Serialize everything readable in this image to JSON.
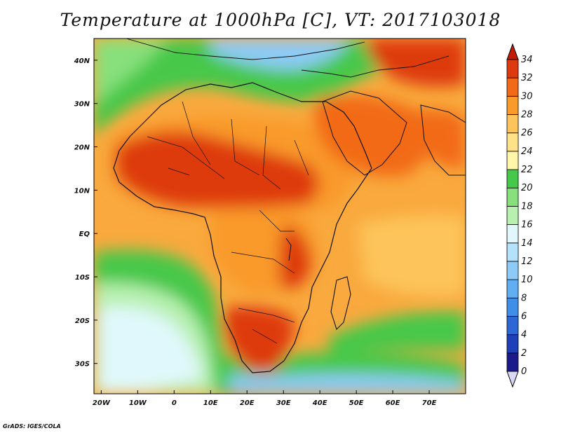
{
  "title": "Temperature at 1000hPa [C], VT: 2017103018",
  "credit": "GrADS: IGES/COLA",
  "map": {
    "variable": "Temperature at 1000hPa",
    "unit": "C",
    "valid_time": "2017103018",
    "lon_range": [
      -22,
      80
    ],
    "lat_range": [
      -37,
      45
    ],
    "lon_ticks": [
      {
        "value": -20,
        "label": "20W"
      },
      {
        "value": -10,
        "label": "10W"
      },
      {
        "value": 0,
        "label": "0"
      },
      {
        "value": 10,
        "label": "10E"
      },
      {
        "value": 20,
        "label": "20E"
      },
      {
        "value": 30,
        "label": "30E"
      },
      {
        "value": 40,
        "label": "40E"
      },
      {
        "value": 50,
        "label": "50E"
      },
      {
        "value": 60,
        "label": "60E"
      },
      {
        "value": 70,
        "label": "70E"
      }
    ],
    "lat_ticks": [
      {
        "value": 40,
        "label": "40N"
      },
      {
        "value": 30,
        "label": "30N"
      },
      {
        "value": 20,
        "label": "20N"
      },
      {
        "value": 10,
        "label": "10N"
      },
      {
        "value": 0,
        "label": "EQ"
      },
      {
        "value": -10,
        "label": "10S"
      },
      {
        "value": -20,
        "label": "20S"
      },
      {
        "value": -30,
        "label": "30S"
      }
    ]
  },
  "colorbar": {
    "levels": [
      {
        "value": 0,
        "label": "0"
      },
      {
        "value": 2,
        "label": "2"
      },
      {
        "value": 4,
        "label": "4"
      },
      {
        "value": 6,
        "label": "6"
      },
      {
        "value": 8,
        "label": "8"
      },
      {
        "value": 10,
        "label": "10"
      },
      {
        "value": 12,
        "label": "12"
      },
      {
        "value": 14,
        "label": "14"
      },
      {
        "value": 16,
        "label": "16"
      },
      {
        "value": 18,
        "label": "18"
      },
      {
        "value": 20,
        "label": "20"
      },
      {
        "value": 22,
        "label": "22"
      },
      {
        "value": 24,
        "label": "24"
      },
      {
        "value": 26,
        "label": "26"
      },
      {
        "value": 28,
        "label": "28"
      },
      {
        "value": 30,
        "label": "30"
      },
      {
        "value": 32,
        "label": "32"
      },
      {
        "value": 34,
        "label": "34"
      }
    ],
    "colors": [
      "#d8d8f4",
      "#1a1a8a",
      "#1f3fb8",
      "#2d67d6",
      "#3f8ee8",
      "#62aef2",
      "#8dcaf7",
      "#b5e2fb",
      "#e0f8fb",
      "#b8f0b0",
      "#87e07c",
      "#46c84a",
      "#fff6a8",
      "#fde28a",
      "#fcc45a",
      "#f99a2a",
      "#f26a18",
      "#de3a10",
      "#c41a0a"
    ]
  }
}
